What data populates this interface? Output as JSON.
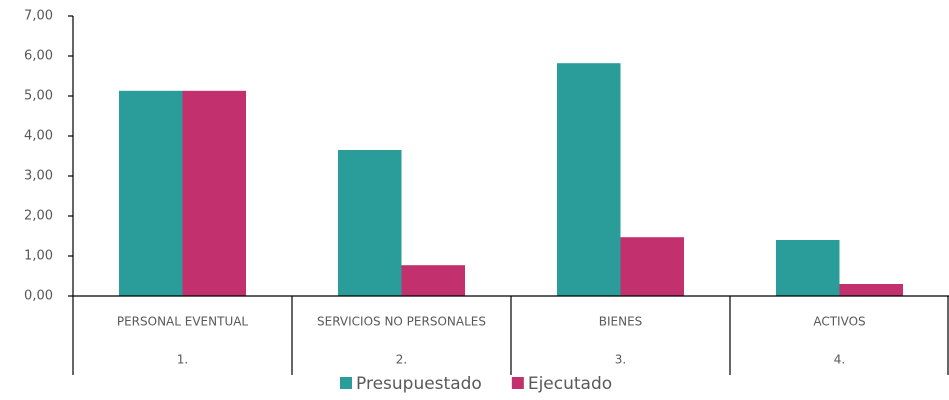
{
  "chart_data": {
    "type": "bar",
    "categories": [
      "PERSONAL EVENTUAL",
      "SERVICIOS NO PERSONALES",
      "BIENES",
      "ACTIVOS"
    ],
    "category_groups": [
      "1.",
      "2.",
      "3.",
      "4."
    ],
    "series": [
      {
        "name": "Presupuestado",
        "color": "#2a9d9a",
        "values": [
          5.13,
          3.65,
          5.82,
          1.4
        ]
      },
      {
        "name": "Ejecutado",
        "color": "#c3306e",
        "values": [
          5.13,
          0.77,
          1.47,
          0.3
        ]
      }
    ],
    "ylim": [
      0,
      7
    ],
    "yticks": [
      {
        "value": 0,
        "label": "0,00"
      },
      {
        "value": 1,
        "label": "1,00"
      },
      {
        "value": 2,
        "label": "2,00"
      },
      {
        "value": 3,
        "label": "3,00"
      },
      {
        "value": 4,
        "label": "4,00"
      },
      {
        "value": 5,
        "label": "5,00"
      },
      {
        "value": 6,
        "label": "6,00"
      },
      {
        "value": 7,
        "label": "7,00"
      }
    ],
    "legend": "bottom",
    "grid": false
  }
}
